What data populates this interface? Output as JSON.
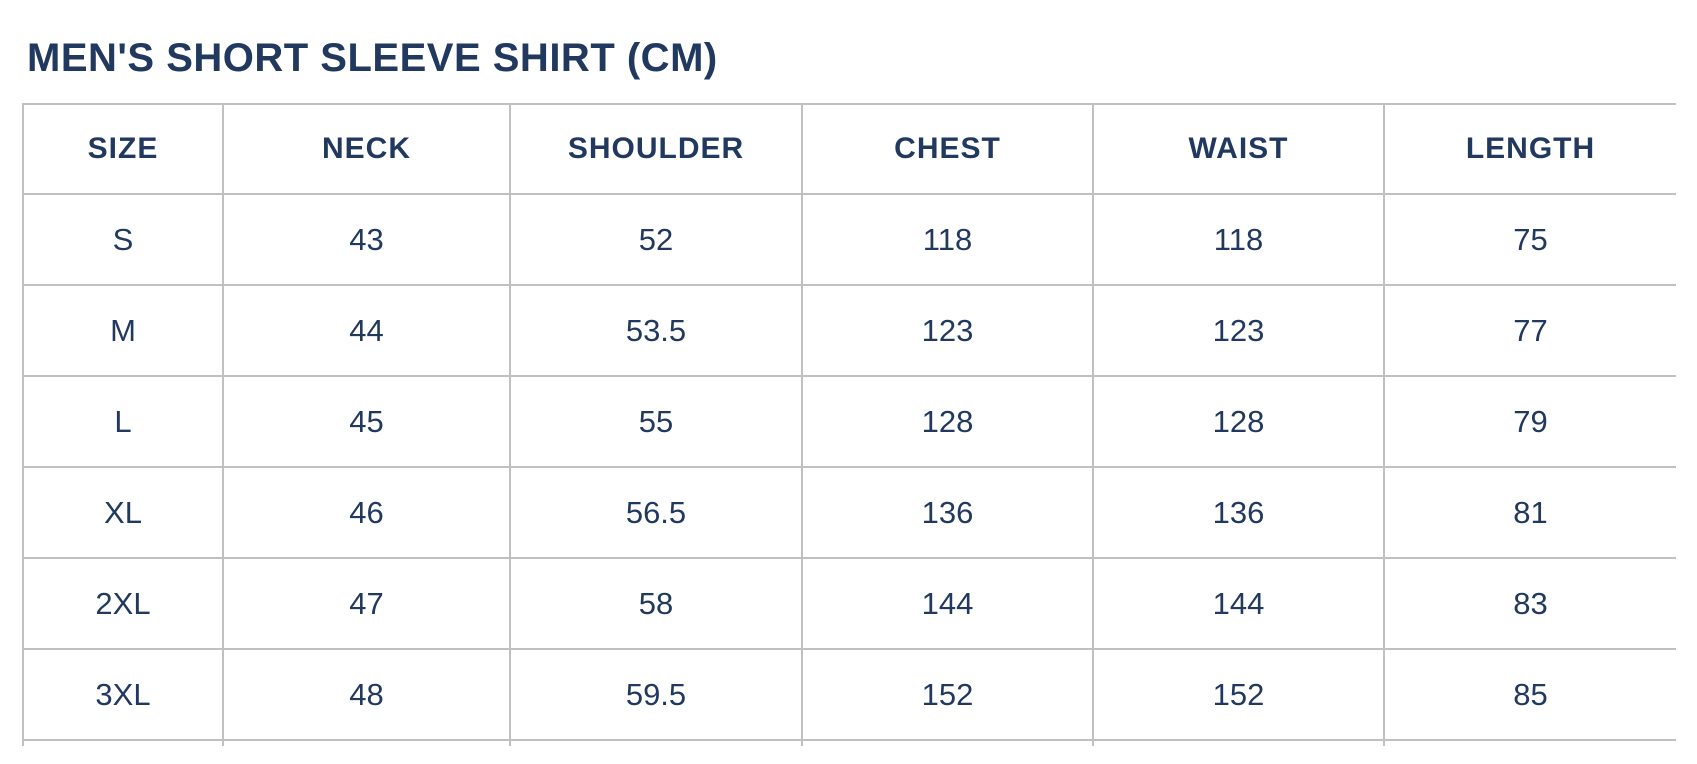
{
  "page": {
    "title": "MEN'S SHORT SLEEVE SHIRT (CM)"
  },
  "colors": {
    "text_navy": "#21395e",
    "border_gray": "#c0c0c0",
    "background": "#ffffff"
  },
  "chart_data": {
    "type": "table",
    "title": "MEN'S SHORT SLEEVE SHIRT (CM)",
    "unit": "CM",
    "columns": [
      "SIZE",
      "NECK",
      "SHOULDER",
      "CHEST",
      "WAIST",
      "LENGTH"
    ],
    "rows": [
      [
        "S",
        "43",
        "52",
        "118",
        "118",
        "75"
      ],
      [
        "M",
        "44",
        "53.5",
        "123",
        "123",
        "77"
      ],
      [
        "L",
        "45",
        "55",
        "128",
        "128",
        "79"
      ],
      [
        "XL",
        "46",
        "56.5",
        "136",
        "136",
        "81"
      ],
      [
        "2XL",
        "47",
        "58",
        "144",
        "144",
        "83"
      ],
      [
        "3XL",
        "48",
        "59.5",
        "152",
        "152",
        "85"
      ]
    ]
  }
}
